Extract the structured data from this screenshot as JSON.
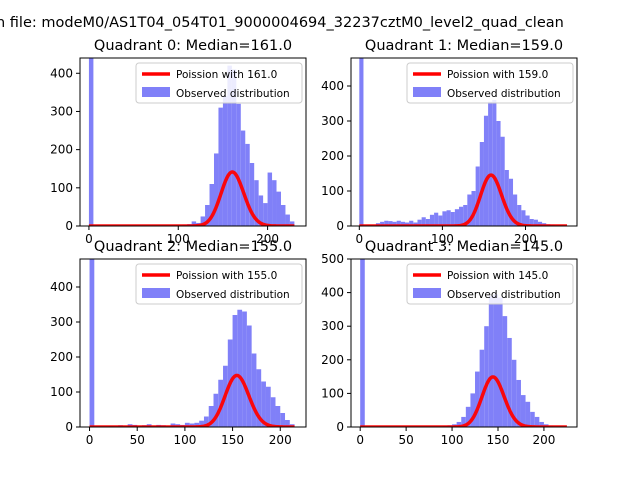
{
  "figure": {
    "suptitle": "n file: modeM0/AS1T04_054T01_9000004694_32237cztM0_level2_quad_clean"
  },
  "chart_data": [
    {
      "type": "histogram",
      "title": "Quadrant 0: Median=161.0",
      "median": 161.0,
      "xlim": [
        -10,
        243
      ],
      "ylim": [
        0,
        440
      ],
      "xticks": [
        0,
        100,
        200
      ],
      "xtick_labels": [
        "0",
        "100",
        "200"
      ],
      "yticks": [
        0,
        100,
        200,
        300,
        400
      ],
      "ytick_labels": [
        "0",
        "100",
        "200",
        "300",
        "400"
      ],
      "legend": {
        "position": "upper right",
        "entries": [
          "Poission with 161.0",
          "Observed distribution"
        ]
      },
      "bin_width": 5,
      "bins": [
        [
          0,
          440
        ],
        [
          105,
          3
        ],
        [
          110,
          5
        ],
        [
          115,
          12
        ],
        [
          120,
          8
        ],
        [
          125,
          25
        ],
        [
          130,
          55
        ],
        [
          135,
          110
        ],
        [
          140,
          190
        ],
        [
          145,
          310
        ],
        [
          150,
          340
        ],
        [
          155,
          420
        ],
        [
          160,
          410
        ],
        [
          165,
          320
        ],
        [
          170,
          250
        ],
        [
          175,
          215
        ],
        [
          180,
          165
        ],
        [
          185,
          120
        ],
        [
          190,
          80
        ],
        [
          195,
          60
        ],
        [
          200,
          140
        ],
        [
          205,
          120
        ],
        [
          210,
          90
        ],
        [
          215,
          55
        ],
        [
          220,
          30
        ],
        [
          225,
          12
        ]
      ],
      "poisson": {
        "lambda": 161.0,
        "n": 4500,
        "x_range": [
          0,
          230
        ]
      }
    },
    {
      "type": "histogram",
      "title": "Quadrant 1: Median=159.0",
      "median": 159.0,
      "xlim": [
        -10,
        262
      ],
      "ylim": [
        0,
        480
      ],
      "xticks": [
        0,
        100,
        200
      ],
      "xtick_labels": [
        "0",
        "100",
        "200"
      ],
      "yticks": [
        0,
        100,
        200,
        300,
        400
      ],
      "ytick_labels": [
        "0",
        "100",
        "200",
        "300",
        "400"
      ],
      "legend": {
        "position": "upper right",
        "entries": [
          "Poission with 159.0",
          "Observed distribution"
        ]
      },
      "bin_width": 5,
      "bins": [
        [
          0,
          480
        ],
        [
          20,
          8
        ],
        [
          25,
          12
        ],
        [
          30,
          15
        ],
        [
          35,
          14
        ],
        [
          40,
          12
        ],
        [
          45,
          15
        ],
        [
          50,
          12
        ],
        [
          55,
          10
        ],
        [
          60,
          15
        ],
        [
          65,
          10
        ],
        [
          70,
          18
        ],
        [
          75,
          25
        ],
        [
          80,
          20
        ],
        [
          85,
          32
        ],
        [
          90,
          38
        ],
        [
          95,
          30
        ],
        [
          100,
          42
        ],
        [
          105,
          45
        ],
        [
          110,
          40
        ],
        [
          115,
          48
        ],
        [
          120,
          55
        ],
        [
          125,
          60
        ],
        [
          130,
          90
        ],
        [
          135,
          100
        ],
        [
          140,
          170
        ],
        [
          145,
          240
        ],
        [
          150,
          315
        ],
        [
          155,
          355
        ],
        [
          160,
          360
        ],
        [
          165,
          300
        ],
        [
          170,
          255
        ],
        [
          175,
          160
        ],
        [
          180,
          135
        ],
        [
          185,
          90
        ],
        [
          190,
          60
        ],
        [
          195,
          45
        ],
        [
          200,
          30
        ],
        [
          205,
          20
        ],
        [
          210,
          18
        ],
        [
          215,
          12
        ],
        [
          220,
          8
        ],
        [
          225,
          5
        ],
        [
          230,
          4
        ]
      ],
      "poisson": {
        "lambda": 159.0,
        "n": 4600,
        "x_range": [
          0,
          250
        ]
      }
    },
    {
      "type": "histogram",
      "title": "Quadrant 2: Median=155.0",
      "median": 155.0,
      "xlim": [
        -10,
        227
      ],
      "ylim": [
        0,
        480
      ],
      "xticks": [
        0,
        50,
        100,
        150,
        200
      ],
      "xtick_labels": [
        "0",
        "50",
        "100",
        "150",
        "200"
      ],
      "yticks": [
        0,
        100,
        200,
        300,
        400
      ],
      "ytick_labels": [
        "0",
        "100",
        "200",
        "300",
        "400"
      ],
      "legend": {
        "position": "upper right",
        "entries": [
          "Poission with 155.0",
          "Observed distribution"
        ]
      },
      "bin_width": 5,
      "bins": [
        [
          0,
          480
        ],
        [
          20,
          3
        ],
        [
          30,
          5
        ],
        [
          40,
          8
        ],
        [
          45,
          6
        ],
        [
          55,
          5
        ],
        [
          60,
          8
        ],
        [
          70,
          6
        ],
        [
          75,
          5
        ],
        [
          85,
          10
        ],
        [
          90,
          8
        ],
        [
          95,
          6
        ],
        [
          100,
          12
        ],
        [
          105,
          10
        ],
        [
          110,
          12
        ],
        [
          115,
          18
        ],
        [
          120,
          30
        ],
        [
          125,
          60
        ],
        [
          130,
          95
        ],
        [
          135,
          135
        ],
        [
          140,
          175
        ],
        [
          145,
          250
        ],
        [
          150,
          320
        ],
        [
          155,
          335
        ],
        [
          160,
          330
        ],
        [
          165,
          290
        ],
        [
          170,
          210
        ],
        [
          175,
          165
        ],
        [
          180,
          130
        ],
        [
          185,
          115
        ],
        [
          190,
          85
        ],
        [
          195,
          60
        ],
        [
          200,
          40
        ],
        [
          205,
          20
        ],
        [
          210,
          8
        ]
      ],
      "poisson": {
        "lambda": 155.0,
        "n": 4600,
        "x_range": [
          0,
          215
        ]
      }
    },
    {
      "type": "histogram",
      "title": "Quadrant 3: Median=145.0",
      "median": 145.0,
      "xlim": [
        -10,
        236
      ],
      "ylim": [
        0,
        500
      ],
      "xticks": [
        0,
        50,
        100,
        150,
        200
      ],
      "xtick_labels": [
        "0",
        "50",
        "100",
        "150",
        "200"
      ],
      "yticks": [
        0,
        100,
        200,
        300,
        400,
        500
      ],
      "ytick_labels": [
        "0",
        "100",
        "200",
        "300",
        "400",
        "500"
      ],
      "legend": {
        "position": "upper right",
        "entries": [
          "Poission with 145.0",
          "Observed distribution"
        ]
      },
      "bin_width": 5,
      "bins": [
        [
          0,
          500
        ],
        [
          90,
          3
        ],
        [
          95,
          5
        ],
        [
          100,
          8
        ],
        [
          105,
          15
        ],
        [
          110,
          30
        ],
        [
          115,
          60
        ],
        [
          120,
          100
        ],
        [
          125,
          165
        ],
        [
          130,
          230
        ],
        [
          135,
          300
        ],
        [
          140,
          390
        ],
        [
          145,
          395
        ],
        [
          150,
          385
        ],
        [
          155,
          330
        ],
        [
          160,
          265
        ],
        [
          165,
          200
        ],
        [
          170,
          140
        ],
        [
          175,
          95
        ],
        [
          180,
          75
        ],
        [
          185,
          45
        ],
        [
          190,
          30
        ],
        [
          195,
          15
        ],
        [
          200,
          8
        ],
        [
          205,
          4
        ]
      ],
      "poisson": {
        "lambda": 145.0,
        "n": 4500,
        "x_range": [
          0,
          225
        ]
      }
    }
  ],
  "colors": {
    "poisson_line": "#ff0000",
    "observed_bar": "#8080f8",
    "axes": "#000000",
    "legend_border": "#cccccc"
  }
}
